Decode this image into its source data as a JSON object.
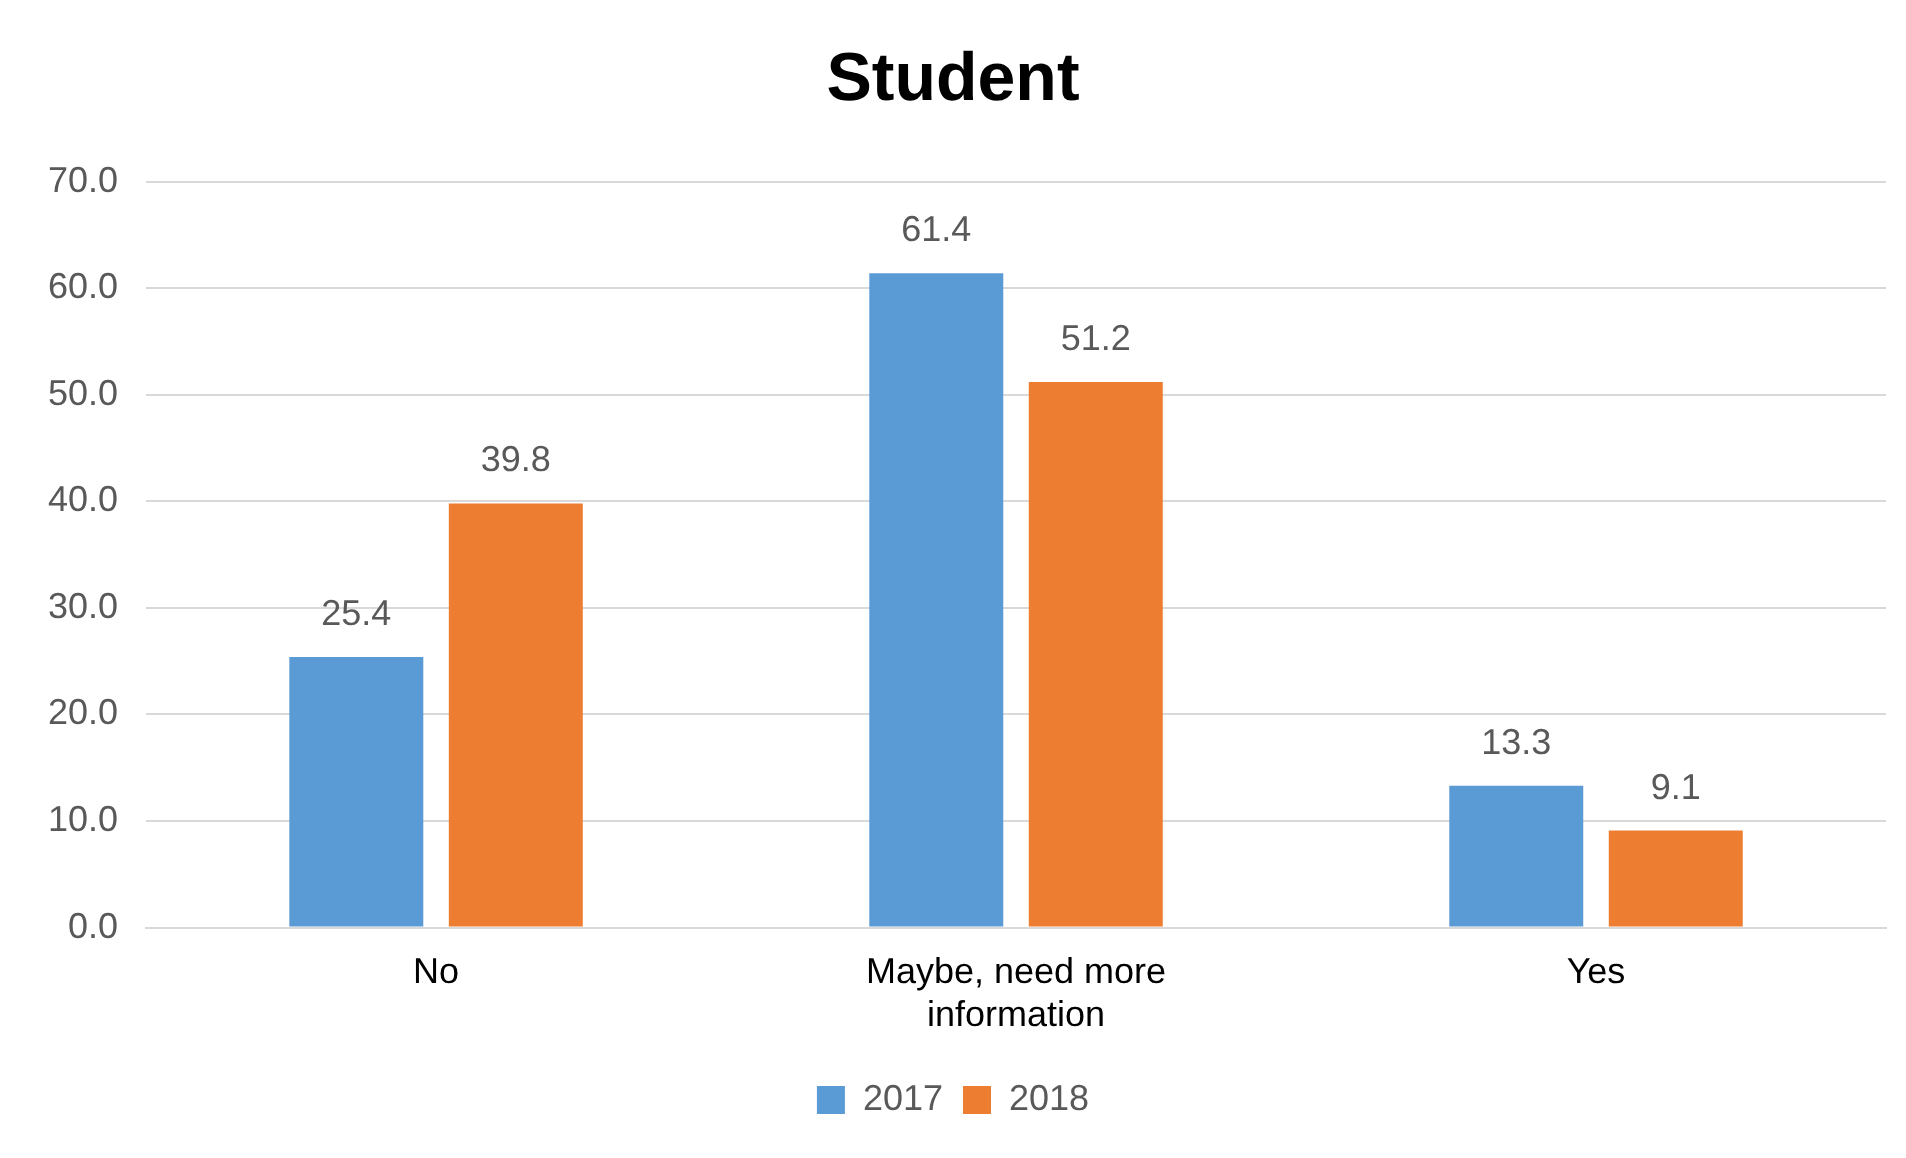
{
  "chart_data": {
    "type": "bar",
    "title": "Student",
    "categories": [
      "No",
      "Maybe, need more information",
      "Yes"
    ],
    "series": [
      {
        "name": "2017",
        "color": "#5b9bd5",
        "values": [
          25.4,
          61.4,
          13.3
        ]
      },
      {
        "name": "2018",
        "color": "#ed7d31",
        "values": [
          39.8,
          51.2,
          9.1
        ]
      }
    ],
    "ylim": [
      0,
      70
    ],
    "yticks": [
      {
        "value": 0,
        "label": "0.0"
      },
      {
        "value": 10,
        "label": "10.0"
      },
      {
        "value": 20,
        "label": "20.0"
      },
      {
        "value": 30,
        "label": "30.0"
      },
      {
        "value": 40,
        "label": "40.0"
      },
      {
        "value": 50,
        "label": "50.0"
      },
      {
        "value": 60,
        "label": "60.0"
      },
      {
        "value": 70,
        "label": "70.0"
      }
    ],
    "grid": "y",
    "legend": "bottom",
    "data_labels": true
  }
}
